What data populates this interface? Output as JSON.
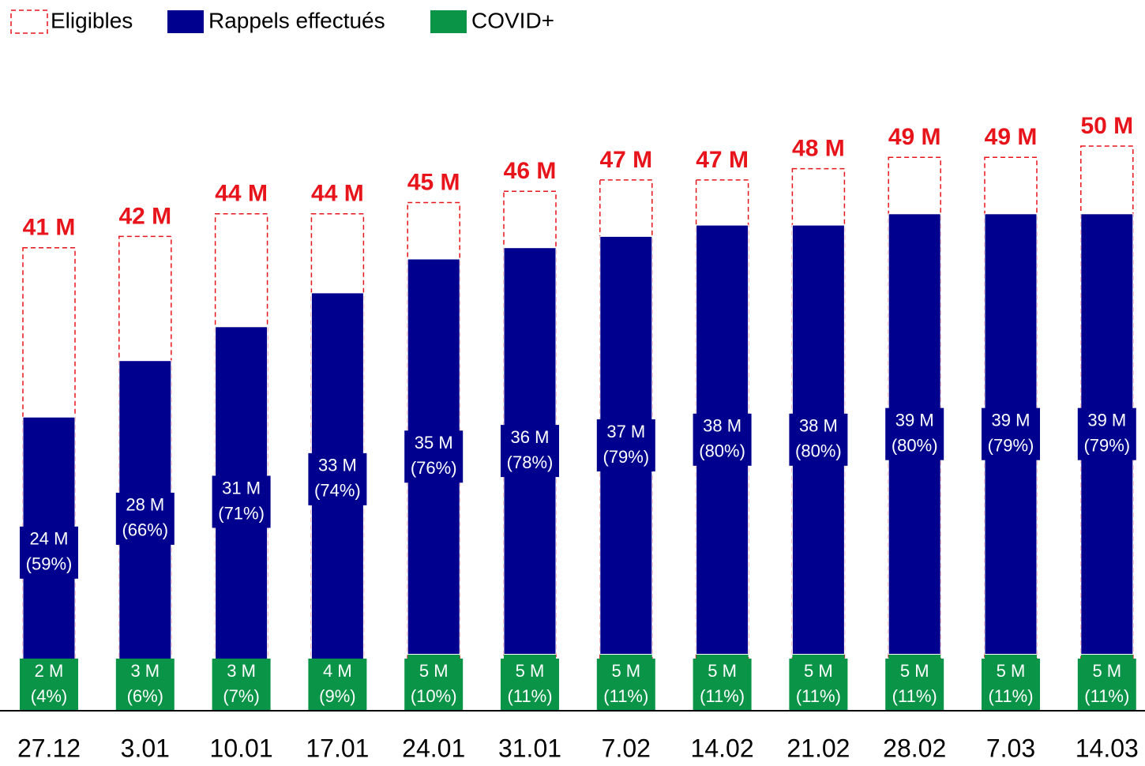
{
  "chart_data": {
    "type": "bar",
    "categories": [
      "27.12",
      "3.01",
      "10.01",
      "17.01",
      "24.01",
      "31.01",
      "7.02",
      "14.02",
      "21.02",
      "28.02",
      "7.03",
      "14.03"
    ],
    "series": [
      {
        "name": "Eligibles",
        "color": "#e8141b",
        "dashed": true,
        "values": [
          41,
          42,
          44,
          44,
          45,
          46,
          47,
          47,
          48,
          49,
          49,
          50
        ],
        "value_labels": [
          "41 M",
          "42 M",
          "44 M",
          "44 M",
          "45 M",
          "46 M",
          "47 M",
          "47 M",
          "48 M",
          "49 M",
          "49 M",
          "50 M"
        ]
      },
      {
        "name": "Rappels effectués",
        "color": "#00008f",
        "values": [
          24,
          28,
          31,
          33,
          35,
          36,
          37,
          38,
          38,
          39,
          39,
          39
        ],
        "value_labels": [
          [
            "24 M",
            "(59%)"
          ],
          [
            "28 M",
            "(66%)"
          ],
          [
            "31 M",
            "(71%)"
          ],
          [
            "33 M",
            "(74%)"
          ],
          [
            "35 M",
            "(76%)"
          ],
          [
            "36 M",
            "(78%)"
          ],
          [
            "37 M",
            "(79%)"
          ],
          [
            "38 M",
            "(80%)"
          ],
          [
            "38 M",
            "(80%)"
          ],
          [
            "39 M",
            "(80%)"
          ],
          [
            "39 M",
            "(79%)"
          ],
          [
            "39 M",
            "(79%)"
          ]
        ]
      },
      {
        "name": "COVID+",
        "color": "#0a9447",
        "values": [
          2,
          3,
          3,
          4,
          5,
          5,
          5,
          5,
          5,
          5,
          5,
          5
        ],
        "value_labels": [
          [
            "2 M",
            "(4%)"
          ],
          [
            "3 M",
            "(6%)"
          ],
          [
            "3 M",
            "(7%)"
          ],
          [
            "4 M",
            "(9%)"
          ],
          [
            "5 M",
            "(10%)"
          ],
          [
            "5 M",
            "(11%)"
          ],
          [
            "5 M",
            "(11%)"
          ],
          [
            "5 M",
            "(11%)"
          ],
          [
            "5 M",
            "(11%)"
          ],
          [
            "5 M",
            "(11%)"
          ],
          [
            "5 M",
            "(11%)"
          ],
          [
            "5 M",
            "(11%)"
          ]
        ]
      }
    ]
  }
}
